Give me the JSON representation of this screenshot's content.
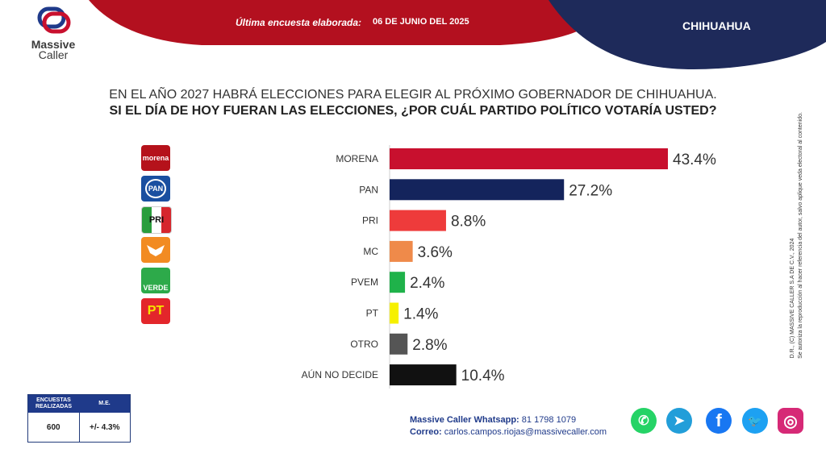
{
  "brand": {
    "name_line1": "Massive",
    "name_line2": "Caller"
  },
  "header": {
    "survey_label": "Última encuesta elaborada:",
    "survey_date": "06 DE JUNIO DEL 2025",
    "region": "CHIHUAHUA"
  },
  "question": {
    "line1": "EN EL AÑO 2027 HABRÁ ELECCIONES PARA ELEGIR AL PRÓXIMO GOBERNADOR DE CHIHUAHUA.",
    "line2": "SI EL DÍA DE HOY FUERAN LAS ELECCIONES, ¿POR CUÁL PARTIDO POLÍTICO VOTARÍA USTED?"
  },
  "party_logos": [
    {
      "text": "morena",
      "color": "#b5121b"
    },
    {
      "text": "PAN",
      "color": "#1a4fa0"
    },
    {
      "text": "PRI",
      "color": "#ffffff"
    },
    {
      "text": "MC",
      "color": "#f28b22"
    },
    {
      "text": "VERDE",
      "color": "#2daa4a"
    },
    {
      "text": "PT",
      "color": "#e3262b"
    }
  ],
  "chart_data": {
    "type": "bar",
    "orientation": "horizontal",
    "categories": [
      "MORENA",
      "PAN",
      "PRI",
      "MC",
      "PVEM",
      "PT",
      "OTRO",
      "AÚN NO DECIDE"
    ],
    "values": [
      43.4,
      27.2,
      8.8,
      3.6,
      2.4,
      1.4,
      2.8,
      10.4
    ],
    "value_labels": [
      "43.4%",
      "27.2%",
      "8.8%",
      "3.6%",
      "2.4%",
      "1.4%",
      "2.8%",
      "10.4%"
    ],
    "colors": [
      "#c8102e",
      "#14245c",
      "#ee3b3b",
      "#ef8a4a",
      "#1fb24a",
      "#f6f000",
      "#555555",
      "#111111"
    ],
    "unit": "%",
    "grid": false,
    "legend": "none"
  },
  "stats": {
    "surveys_header": "ENCUESTAS REALIZADAS",
    "me_header": "M.E.",
    "surveys_value": "600",
    "me_value": "+/- 4.3%"
  },
  "contact": {
    "whatsapp_label": "Massive Caller Whatsapp:",
    "whatsapp_value": "81 1798 1079",
    "email_label": "Correo:",
    "email_value": "carlos.campos.riojas@massivecaller.com"
  },
  "side_note": {
    "line1": "D.R., (C) MASSIVE CALLER S.A DE C.V., 2024",
    "line2": "Se autoriza la reproducción al hacer referencia del autor, salvo aplique veda electoral al contenido."
  },
  "social": [
    {
      "name": "whatsapp-icon",
      "glyph": "✆",
      "color": "#25d366"
    },
    {
      "name": "telegram-icon",
      "glyph": "➤",
      "color": "#229ed9"
    },
    {
      "name": "facebook-icon",
      "glyph": "f",
      "color": "#1877f2"
    },
    {
      "name": "twitter-icon",
      "glyph": "🐦",
      "color": "#1da1f2"
    },
    {
      "name": "instagram-icon",
      "glyph": "◎",
      "color": "#d62976"
    }
  ]
}
